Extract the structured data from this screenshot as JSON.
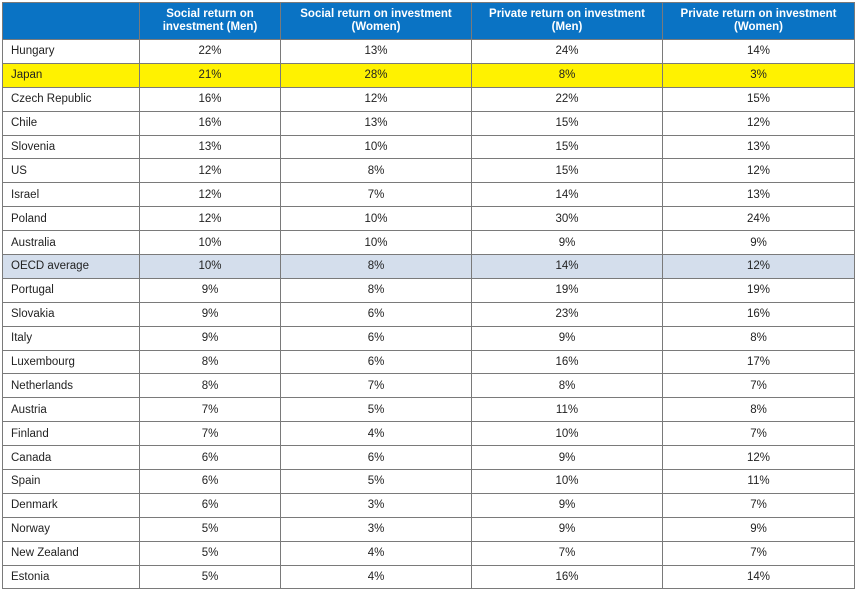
{
  "chart_data": {
    "type": "table",
    "columns": [
      "",
      "Social return on investment (Men)",
      "Social return on investment (Women)",
      "Private return on investment (Men)",
      "Private return on investment (Women)"
    ],
    "rows": [
      {
        "country": "Hungary",
        "values": [
          "22%",
          "13%",
          "24%",
          "14%"
        ],
        "highlight": ""
      },
      {
        "country": "Japan",
        "values": [
          "21%",
          "28%",
          "8%",
          "3%"
        ],
        "highlight": "yellow"
      },
      {
        "country": "Czech Republic",
        "values": [
          "16%",
          "12%",
          "22%",
          "15%"
        ],
        "highlight": ""
      },
      {
        "country": "Chile",
        "values": [
          "16%",
          "13%",
          "15%",
          "12%"
        ],
        "highlight": ""
      },
      {
        "country": "Slovenia",
        "values": [
          "13%",
          "10%",
          "15%",
          "13%"
        ],
        "highlight": ""
      },
      {
        "country": "US",
        "values": [
          "12%",
          "8%",
          "15%",
          "12%"
        ],
        "highlight": ""
      },
      {
        "country": "Israel",
        "values": [
          "12%",
          "7%",
          "14%",
          "13%"
        ],
        "highlight": ""
      },
      {
        "country": "Poland",
        "values": [
          "12%",
          "10%",
          "30%",
          "24%"
        ],
        "highlight": ""
      },
      {
        "country": "Australia",
        "values": [
          "10%",
          "10%",
          "9%",
          "9%"
        ],
        "highlight": ""
      },
      {
        "country": "OECD average",
        "values": [
          "10%",
          "8%",
          "14%",
          "12%"
        ],
        "highlight": "blue"
      },
      {
        "country": "Portugal",
        "values": [
          "9%",
          "8%",
          "19%",
          "19%"
        ],
        "highlight": ""
      },
      {
        "country": "Slovakia",
        "values": [
          "9%",
          "6%",
          "23%",
          "16%"
        ],
        "highlight": ""
      },
      {
        "country": "Italy",
        "values": [
          "9%",
          "6%",
          "9%",
          "8%"
        ],
        "highlight": ""
      },
      {
        "country": "Luxembourg",
        "values": [
          "8%",
          "6%",
          "16%",
          "17%"
        ],
        "highlight": ""
      },
      {
        "country": "Netherlands",
        "values": [
          "8%",
          "7%",
          "8%",
          "7%"
        ],
        "highlight": ""
      },
      {
        "country": "Austria",
        "values": [
          "7%",
          "5%",
          "11%",
          "8%"
        ],
        "highlight": ""
      },
      {
        "country": "Finland",
        "values": [
          "7%",
          "4%",
          "10%",
          "7%"
        ],
        "highlight": ""
      },
      {
        "country": "Canada",
        "values": [
          "6%",
          "6%",
          "9%",
          "12%"
        ],
        "highlight": ""
      },
      {
        "country": "Spain",
        "values": [
          "6%",
          "5%",
          "10%",
          "11%"
        ],
        "highlight": ""
      },
      {
        "country": "Denmark",
        "values": [
          "6%",
          "3%",
          "9%",
          "7%"
        ],
        "highlight": ""
      },
      {
        "country": "Norway",
        "values": [
          "5%",
          "3%",
          "9%",
          "9%"
        ],
        "highlight": ""
      },
      {
        "country": "New Zealand",
        "values": [
          "5%",
          "4%",
          "7%",
          "7%"
        ],
        "highlight": ""
      },
      {
        "country": "Estonia",
        "values": [
          "5%",
          "4%",
          "16%",
          "14%"
        ],
        "highlight": ""
      }
    ]
  },
  "colors": {
    "header_bg": "#0a73c4",
    "highlight_yellow": "#fff200",
    "highlight_blue": "#d4deec"
  }
}
